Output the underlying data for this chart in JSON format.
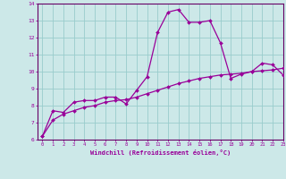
{
  "xlabel": "Windchill (Refroidissement éolien,°C)",
  "bg_color": "#cce8e8",
  "line_color": "#990099",
  "grid_color": "#99cccc",
  "spine_color": "#660066",
  "x_line1": [
    0,
    1,
    2,
    3,
    4,
    5,
    6,
    7,
    8,
    9,
    10,
    11,
    12,
    13,
    14,
    15,
    16,
    17,
    18,
    19,
    20,
    21,
    22,
    23
  ],
  "y_line1": [
    6.2,
    7.7,
    7.6,
    8.2,
    8.3,
    8.3,
    8.5,
    8.5,
    8.1,
    8.9,
    9.7,
    12.3,
    13.5,
    13.65,
    12.9,
    12.9,
    13.0,
    11.7,
    9.6,
    9.85,
    10.0,
    10.5,
    10.4,
    9.8
  ],
  "x_line2": [
    0,
    1,
    2,
    3,
    4,
    5,
    6,
    7,
    8,
    9,
    10,
    11,
    12,
    13,
    14,
    15,
    16,
    17,
    18,
    19,
    20,
    21,
    22,
    23
  ],
  "y_line2": [
    6.2,
    7.15,
    7.5,
    7.7,
    7.9,
    8.0,
    8.2,
    8.3,
    8.35,
    8.5,
    8.7,
    8.9,
    9.1,
    9.3,
    9.45,
    9.6,
    9.7,
    9.8,
    9.85,
    9.9,
    10.0,
    10.05,
    10.1,
    10.2
  ],
  "xlim": [
    -0.5,
    23
  ],
  "ylim": [
    6,
    14
  ],
  "yticks": [
    6,
    7,
    8,
    9,
    10,
    11,
    12,
    13,
    14
  ],
  "xticks": [
    0,
    1,
    2,
    3,
    4,
    5,
    6,
    7,
    8,
    9,
    10,
    11,
    12,
    13,
    14,
    15,
    16,
    17,
    18,
    19,
    20,
    21,
    22,
    23
  ]
}
